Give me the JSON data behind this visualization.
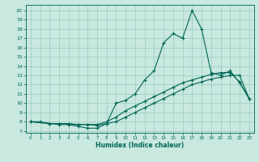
{
  "xlabel": "Humidex (Indice chaleur)",
  "bg_color": "#c8e8e0",
  "grid_color": "#99ccbb",
  "line_color": "#006655",
  "xlim_min": -0.5,
  "xlim_max": 23.5,
  "ylim_min": 6.8,
  "ylim_max": 20.6,
  "xticks": [
    0,
    1,
    2,
    3,
    4,
    5,
    6,
    7,
    8,
    9,
    10,
    11,
    12,
    13,
    14,
    15,
    16,
    17,
    18,
    19,
    20,
    21,
    22,
    23
  ],
  "yticks": [
    7,
    8,
    9,
    10,
    11,
    12,
    13,
    14,
    15,
    16,
    17,
    18,
    19,
    20
  ],
  "line1_x": [
    0,
    1,
    2,
    3,
    4,
    5,
    6,
    7,
    8,
    9,
    10,
    11,
    12,
    13,
    14,
    15,
    16,
    17,
    18,
    19,
    20,
    21,
    22,
    23
  ],
  "line1_y": [
    8.0,
    8.0,
    7.8,
    7.7,
    7.7,
    7.5,
    7.3,
    7.3,
    7.8,
    10.0,
    10.3,
    11.0,
    12.5,
    13.5,
    16.5,
    17.5,
    17.0,
    20.0,
    18.0,
    13.3,
    13.0,
    13.5,
    12.2,
    10.5
  ],
  "line2_x": [
    0,
    2,
    3,
    4,
    5,
    6,
    7,
    8,
    9,
    10,
    11,
    12,
    13,
    14,
    15,
    16,
    17,
    18,
    19,
    20,
    21,
    22,
    23
  ],
  "line2_y": [
    8.0,
    7.8,
    7.8,
    7.8,
    7.7,
    7.7,
    7.7,
    8.0,
    8.5,
    9.2,
    9.7,
    10.2,
    10.7,
    11.2,
    11.7,
    12.2,
    12.5,
    12.8,
    13.1,
    13.3,
    13.3,
    12.3,
    10.5
  ],
  "line3_x": [
    0,
    2,
    3,
    4,
    5,
    6,
    7,
    8,
    9,
    10,
    11,
    12,
    13,
    14,
    15,
    16,
    17,
    18,
    19,
    20,
    21,
    22,
    23
  ],
  "line3_y": [
    8.0,
    7.8,
    7.8,
    7.7,
    7.7,
    7.7,
    7.6,
    7.8,
    8.0,
    8.5,
    9.0,
    9.5,
    10.0,
    10.5,
    11.0,
    11.5,
    12.0,
    12.3,
    12.6,
    12.8,
    13.0,
    13.0,
    10.5
  ]
}
